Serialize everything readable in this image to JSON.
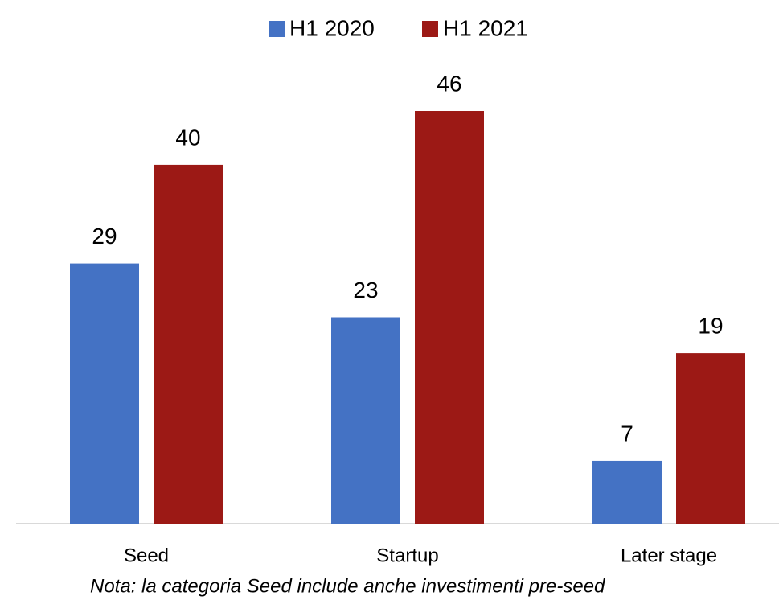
{
  "chart_data": {
    "type": "bar",
    "categories": [
      "Seed",
      "Startup",
      "Later stage"
    ],
    "series": [
      {
        "name": "H1 2020",
        "color": "#4472c4",
        "values": [
          29,
          23,
          7
        ]
      },
      {
        "name": "H1 2021",
        "color": "#9c1915",
        "values": [
          40,
          46,
          19
        ]
      }
    ],
    "legend": "top",
    "note": "Nota: la categoria Seed include anche investimenti pre-seed"
  }
}
